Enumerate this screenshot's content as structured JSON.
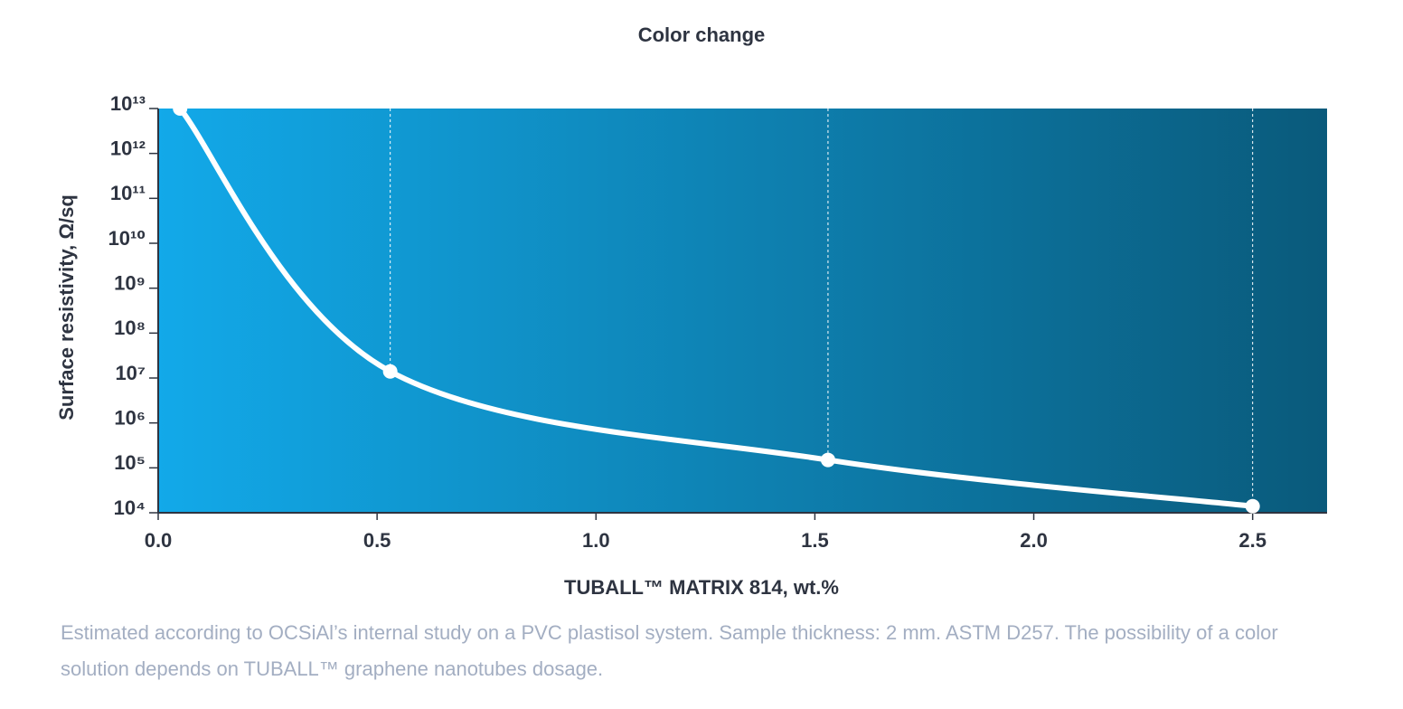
{
  "chart_data": {
    "type": "line",
    "title": "Color change",
    "x_label": "TUBALL™ MATRIX 814, wt.%",
    "y_label": "Surface resistivity, Ω/sq",
    "x": [
      0.05,
      0.53,
      1.53,
      2.5
    ],
    "series": [
      {
        "color": "#ffffff",
        "values": [
          10000000000000,
          14000000,
          150000,
          14000
        ]
      }
    ],
    "xlim": [
      0,
      2.67
    ],
    "xticks": [
      {
        "value": 0,
        "label": "0.0"
      },
      0.5,
      {
        "value": 1,
        "label": "1.0"
      },
      1.5,
      {
        "value": 2,
        "label": "2.0"
      },
      2.5
    ],
    "ylim": [
      10000,
      10000000000000
    ],
    "yscale": "log",
    "yticks": [
      {
        "value": 10000,
        "label": "10⁴"
      },
      {
        "value": 100000,
        "label": "10⁵"
      },
      {
        "value": 1000000,
        "label": "10⁶"
      },
      {
        "value": 10000000,
        "label": "10⁷"
      },
      {
        "value": 100000000,
        "label": "10⁸"
      },
      {
        "value": 1000000000,
        "label": "10⁹"
      },
      {
        "value": 10000000000,
        "label": "10¹⁰"
      },
      {
        "value": 100000000000,
        "label": "10¹¹"
      },
      {
        "value": 1000000000000,
        "label": "10¹²"
      },
      {
        "value": 10000000000000,
        "label": "10¹³"
      }
    ],
    "drop_lines": true,
    "plot_gradient": [
      "#12a9e9",
      "#0a5a7b"
    ],
    "note": "Estimated according to OCSiAl’s internal study on a PVC plastisol system. Sample thickness: 2 mm. ASTM D257. The possibility of a color solution depends on TUBALL™ graphene nanotubes dosage."
  }
}
